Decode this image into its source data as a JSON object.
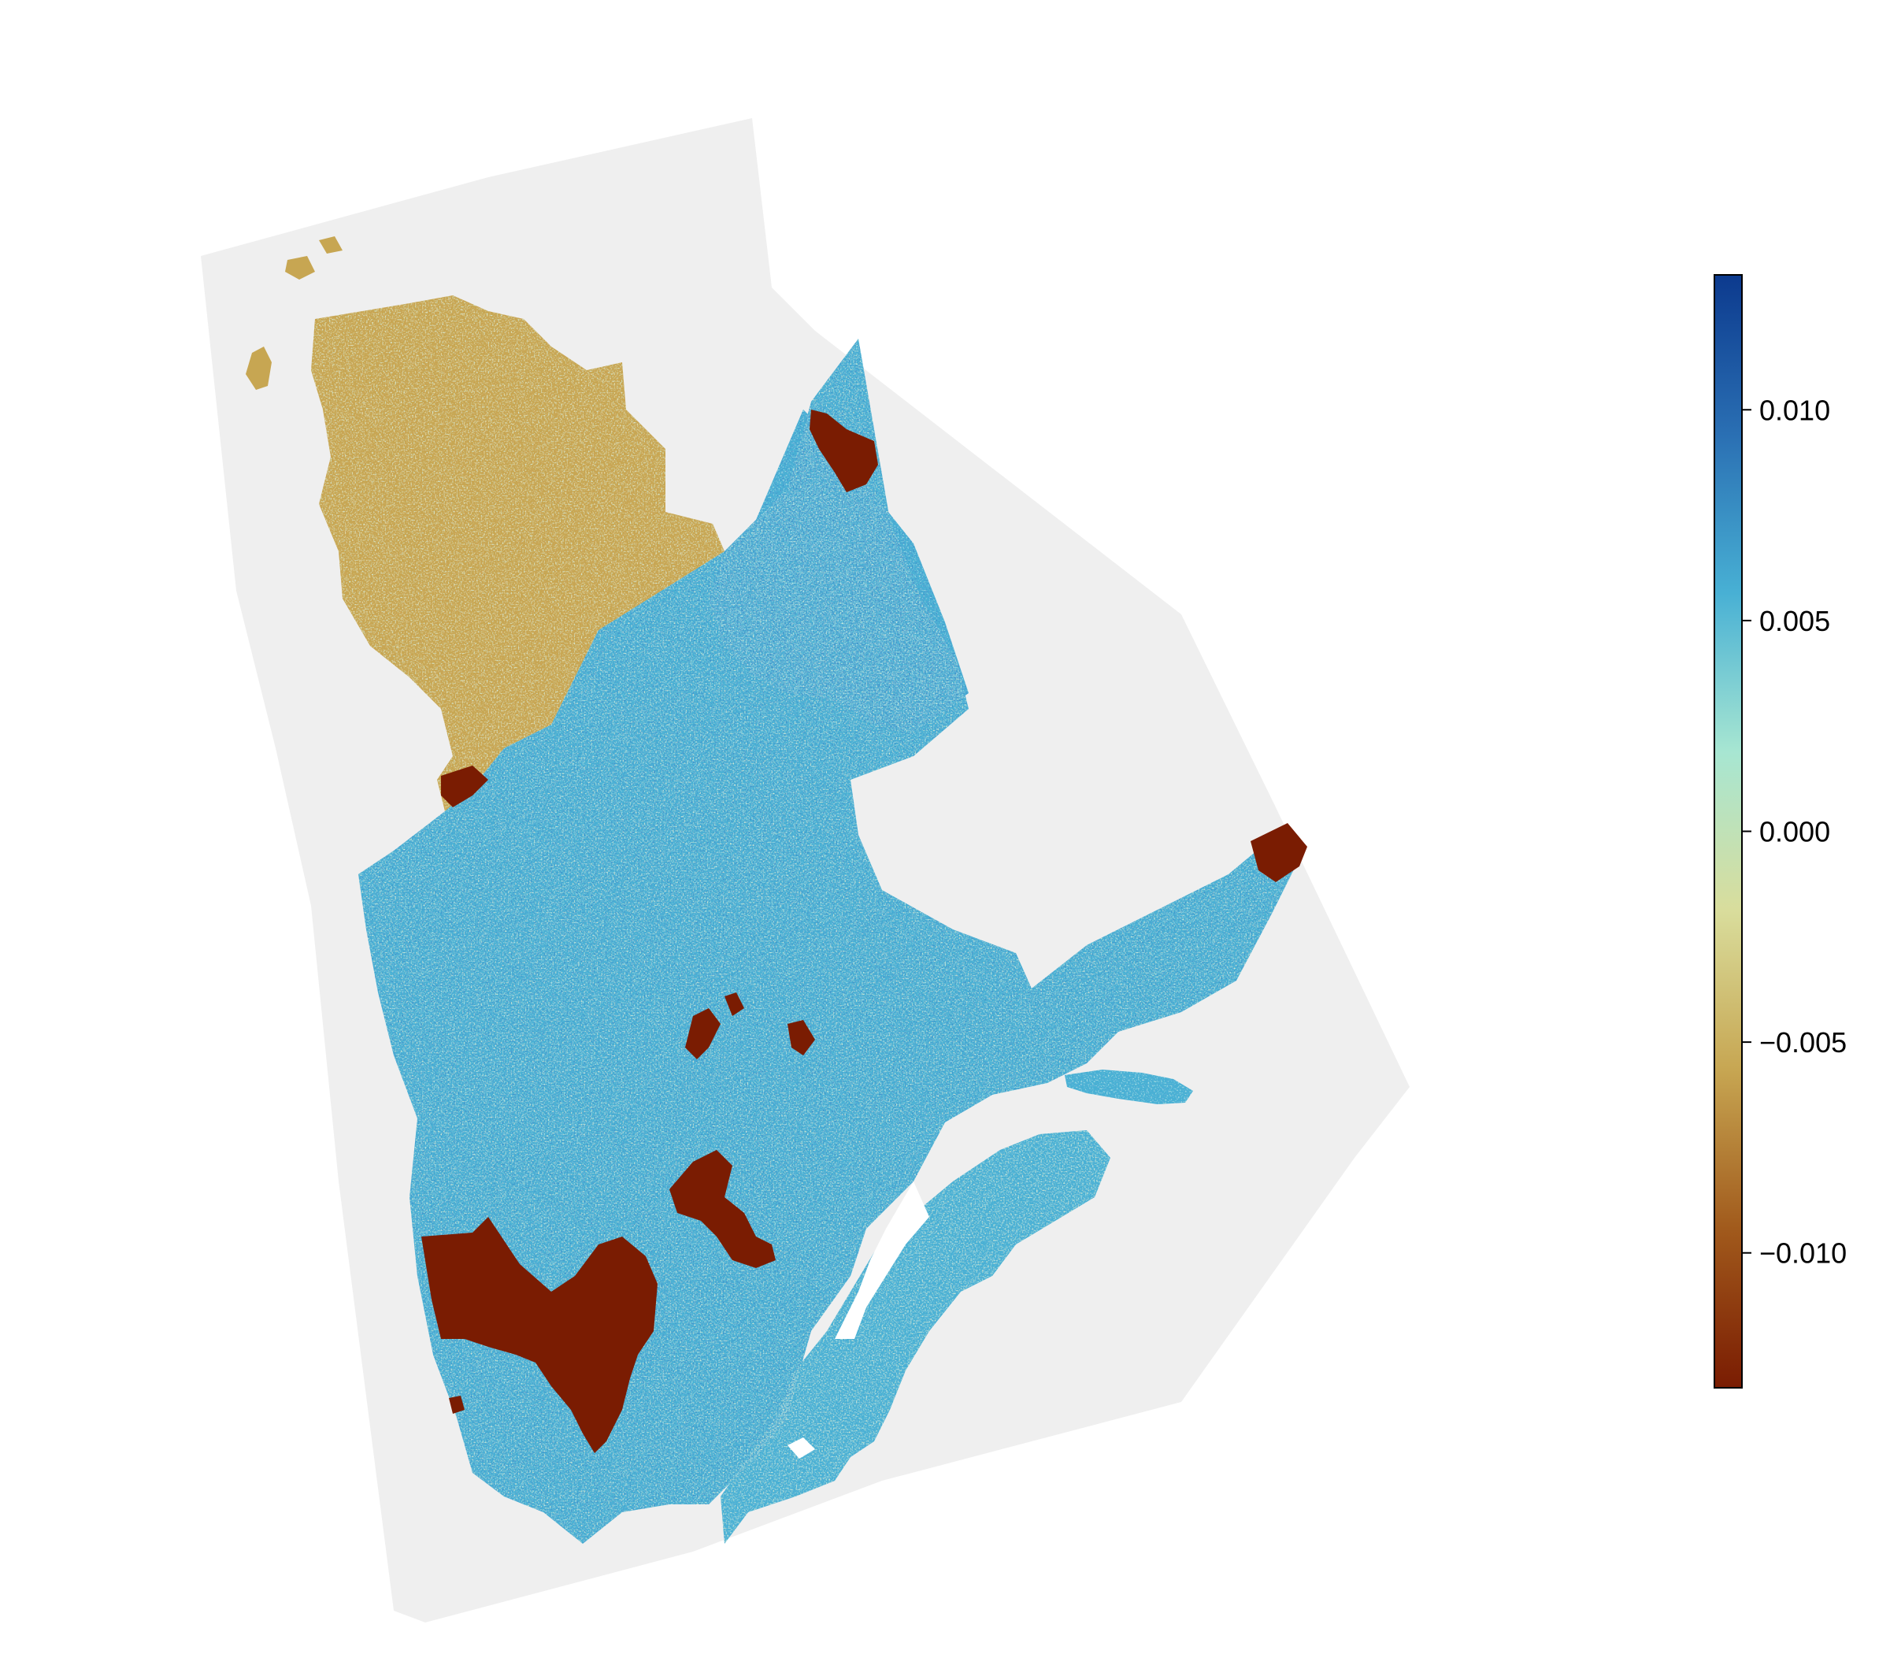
{
  "colorbar": {
    "vmin": -0.0132,
    "vmax": 0.0132,
    "ticks": [
      {
        "value": 0.01,
        "label": "0.010"
      },
      {
        "value": 0.005,
        "label": "0.005"
      },
      {
        "value": 0.0,
        "label": "0.000"
      },
      {
        "value": -0.005,
        "label": "−0.005"
      },
      {
        "value": -0.01,
        "label": "−0.010"
      }
    ],
    "colormap": [
      "#7a1c02",
      "#a15a1c",
      "#c7a652",
      "#d9dd9c",
      "#a7e6d2",
      "#48b0d4",
      "#2a6fb3",
      "#0c3a8e"
    ]
  },
  "map": {
    "nodata_color": "#efefef",
    "background_color": "#ffffff"
  }
}
